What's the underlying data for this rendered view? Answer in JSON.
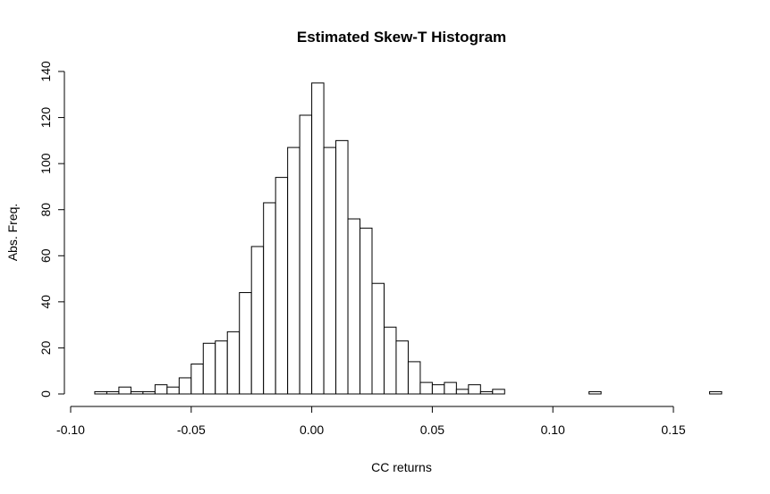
{
  "chart_data": {
    "type": "bar",
    "title": "Estimated Skew-T Histogram",
    "xlabel": "CC returns",
    "ylabel": "Abs. Freq.",
    "xlim": [
      -0.1,
      0.165
    ],
    "ylim": [
      0,
      140
    ],
    "x_ticks": [
      "-0.10",
      "-0.05",
      "0.00",
      "0.05",
      "0.10",
      "0.15"
    ],
    "x_tick_values": [
      -0.1,
      -0.05,
      0.0,
      0.05,
      0.1,
      0.15
    ],
    "y_ticks": [
      "0",
      "20",
      "40",
      "60",
      "80",
      "100",
      "120",
      "140"
    ],
    "y_tick_values": [
      0,
      20,
      40,
      60,
      80,
      100,
      120,
      140
    ],
    "bin_width": 0.005,
    "bin_start": -0.09,
    "values": [
      1,
      1,
      3,
      1,
      1,
      4,
      3,
      7,
      13,
      22,
      23,
      27,
      44,
      64,
      83,
      94,
      107,
      121,
      135,
      107,
      110,
      76,
      72,
      48,
      29,
      23,
      14,
      5,
      4,
      5,
      2,
      4,
      1,
      2,
      0,
      0,
      0,
      0,
      0,
      0,
      0,
      1,
      0,
      0,
      0,
      0,
      0,
      0,
      0,
      0,
      0,
      1
    ],
    "grid": false,
    "bar_fill": "#ffffff",
    "bar_stroke": "#000000"
  }
}
